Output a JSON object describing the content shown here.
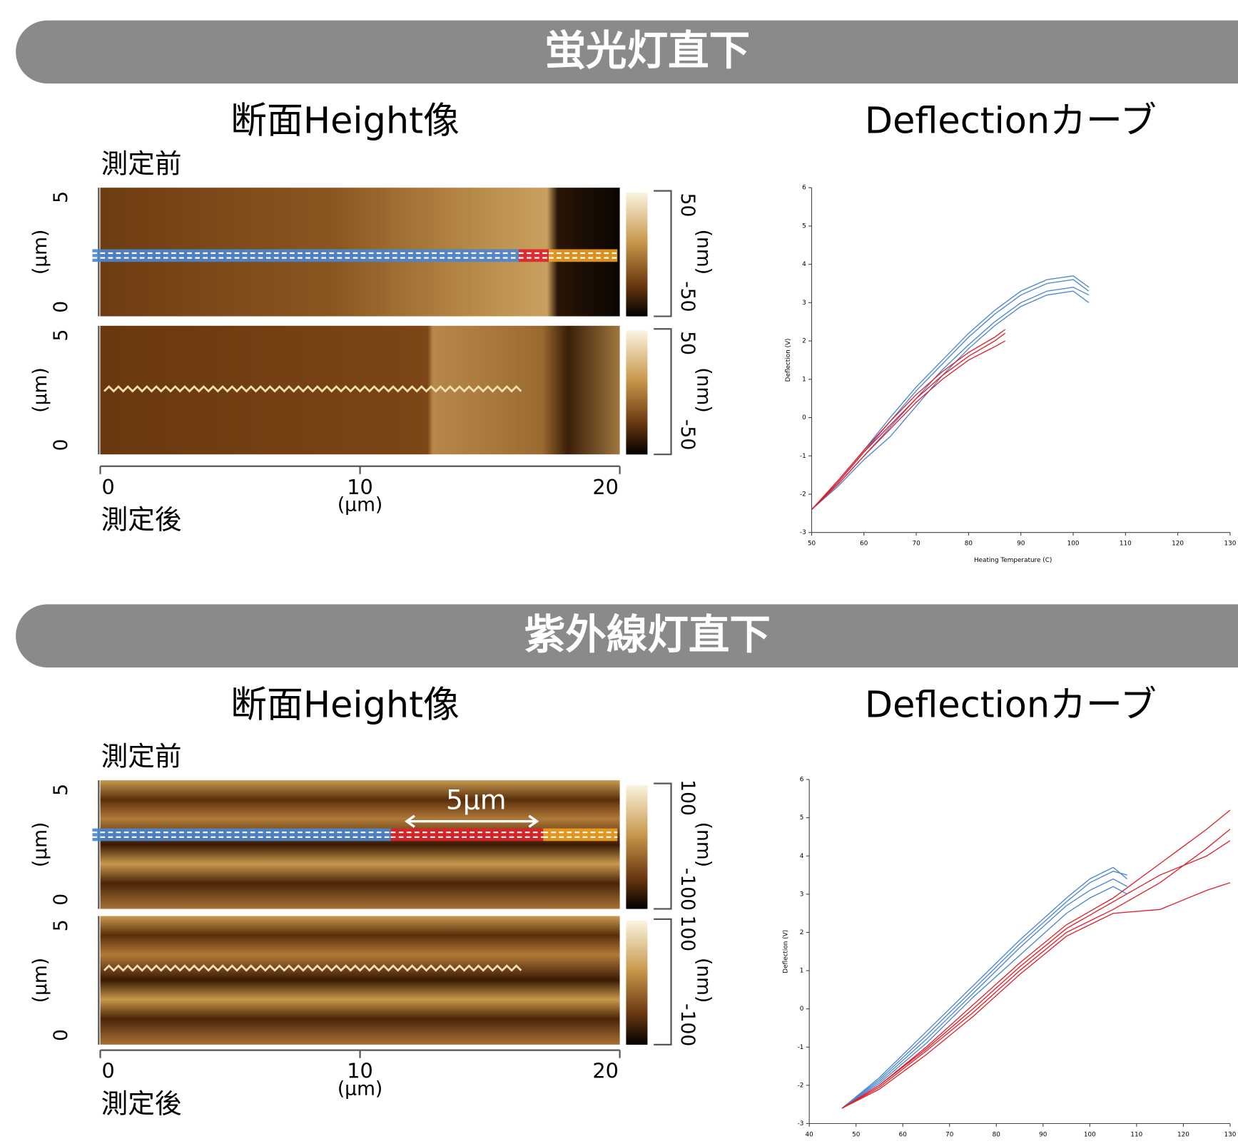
{
  "sections": [
    {
      "title": "蛍光灯直下",
      "height_title": "断面Height像",
      "deflection_title": "Deflectionカーブ",
      "before_label": "測定前",
      "after_label": "測定後",
      "afm": {
        "y_ticks": [
          5,
          0
        ],
        "y_unit": "(µm)",
        "x_ticks": [
          0,
          10,
          20
        ],
        "x_unit": "(µm)",
        "scale_ticks": [
          50,
          -50
        ],
        "scale_unit": "(nm)"
      },
      "chart": {
        "type": "line",
        "x_label": "Heating Temperature (C)",
        "y_label": "Deflection (V)",
        "xlim": [
          50,
          130
        ],
        "ylim": [
          -3,
          6
        ],
        "xticks": [
          50,
          60,
          70,
          80,
          90,
          100,
          110,
          120,
          130
        ],
        "yticks": [
          -3,
          -2,
          -1,
          0,
          1,
          2,
          3,
          4,
          5,
          6
        ],
        "series": [
          {
            "color": "#4a86d0",
            "x": [
              50,
              55,
              60,
              65,
              70,
              75,
              80,
              85,
              90,
              95,
              100,
              103
            ],
            "values": [
              -2.4,
              -1.7,
              -0.9,
              -0.1,
              0.7,
              1.4,
              2.1,
              2.7,
              3.2,
              3.5,
              3.6,
              3.3
            ]
          },
          {
            "color": "#4a86d0",
            "x": [
              50,
              55,
              60,
              65,
              70,
              75,
              80,
              85,
              90,
              95,
              100,
              103
            ],
            "values": [
              -2.4,
              -1.75,
              -1.0,
              -0.25,
              0.5,
              1.25,
              1.9,
              2.5,
              3.0,
              3.3,
              3.4,
              3.2
            ]
          },
          {
            "color": "#4a86d0",
            "x": [
              50,
              55,
              60,
              65,
              70,
              75,
              80,
              85,
              90,
              95,
              100,
              103
            ],
            "values": [
              -2.4,
              -1.8,
              -1.1,
              -0.5,
              0.3,
              1.1,
              1.8,
              2.4,
              2.9,
              3.2,
              3.3,
              3.0
            ]
          },
          {
            "color": "#4a86d0",
            "x": [
              50,
              55,
              60,
              65,
              70,
              75,
              80,
              85,
              90,
              95,
              100,
              103
            ],
            "values": [
              -2.4,
              -1.65,
              -0.85,
              0.0,
              0.8,
              1.5,
              2.2,
              2.8,
              3.3,
              3.6,
              3.7,
              3.4
            ]
          },
          {
            "color": "#e0202a",
            "x": [
              50,
              55,
              60,
              65,
              70,
              75,
              80,
              85,
              87
            ],
            "values": [
              -2.4,
              -1.7,
              -0.9,
              -0.2,
              0.5,
              1.1,
              1.6,
              2.0,
              2.2
            ]
          },
          {
            "color": "#e0202a",
            "x": [
              50,
              55,
              60,
              65,
              70,
              75,
              80,
              85,
              87
            ],
            "values": [
              -2.4,
              -1.75,
              -1.0,
              -0.3,
              0.4,
              1.0,
              1.5,
              1.85,
              2.0
            ]
          },
          {
            "color": "#e0202a",
            "x": [
              50,
              55,
              60,
              65,
              70,
              75,
              80,
              85,
              87
            ],
            "values": [
              -2.4,
              -1.65,
              -0.85,
              -0.1,
              0.6,
              1.2,
              1.7,
              2.1,
              2.3
            ]
          }
        ]
      }
    },
    {
      "title": "紫外線灯直下",
      "height_title": "断面Height像",
      "deflection_title": "Deflectionカーブ",
      "before_label": "測定前",
      "after_label": "測定後",
      "annotation": "5µm",
      "afm": {
        "y_ticks": [
          5,
          0
        ],
        "y_unit": "(µm)",
        "x_ticks": [
          0,
          10,
          20
        ],
        "x_unit": "(µm)",
        "scale_ticks": [
          100,
          -100
        ],
        "scale_unit": "(nm)"
      },
      "chart": {
        "type": "line",
        "y_label": "Deflection (V)",
        "xlim": [
          40,
          130
        ],
        "ylim": [
          -3,
          6
        ],
        "xticks": [
          40,
          50,
          60,
          70,
          80,
          90,
          100,
          110,
          120,
          130
        ],
        "yticks": [
          -3,
          -2,
          -1,
          0,
          1,
          2,
          3,
          4,
          5,
          6
        ],
        "series": [
          {
            "color": "#4a86d0",
            "x": [
              47,
              55,
              65,
              75,
              85,
              95,
              100,
              105,
              108
            ],
            "values": [
              -2.6,
              -1.8,
              -0.6,
              0.6,
              1.8,
              2.9,
              3.4,
              3.7,
              3.4
            ]
          },
          {
            "color": "#4a86d0",
            "x": [
              47,
              55,
              65,
              75,
              85,
              95,
              100,
              105,
              108
            ],
            "values": [
              -2.6,
              -1.9,
              -0.8,
              0.4,
              1.6,
              2.7,
              3.1,
              3.4,
              3.2
            ]
          },
          {
            "color": "#4a86d0",
            "x": [
              47,
              55,
              65,
              75,
              85,
              95,
              100,
              105,
              108
            ],
            "values": [
              -2.6,
              -1.85,
              -0.7,
              0.5,
              1.7,
              2.8,
              3.3,
              3.6,
              3.5
            ]
          },
          {
            "color": "#4a86d0",
            "x": [
              47,
              55,
              65,
              75,
              85,
              95,
              100,
              105,
              108
            ],
            "values": [
              -2.6,
              -1.95,
              -0.9,
              0.3,
              1.4,
              2.5,
              2.9,
              3.2,
              3.0
            ]
          },
          {
            "color": "#e0202a",
            "x": [
              47,
              55,
              65,
              75,
              85,
              95,
              105,
              115,
              125,
              130
            ],
            "values": [
              -2.6,
              -2.0,
              -1.0,
              0.1,
              1.2,
              2.2,
              2.9,
              3.8,
              4.7,
              5.2
            ]
          },
          {
            "color": "#e0202a",
            "x": [
              47,
              55,
              65,
              75,
              85,
              95,
              105,
              115,
              125,
              130
            ],
            "values": [
              -2.6,
              -2.05,
              -1.1,
              -0.1,
              1.0,
              2.0,
              2.6,
              3.3,
              4.2,
              4.7
            ]
          },
          {
            "color": "#e0202a",
            "x": [
              47,
              55,
              65,
              75,
              85,
              95,
              105,
              115,
              125,
              130
            ],
            "values": [
              -2.6,
              -2.1,
              -1.2,
              -0.2,
              0.9,
              1.9,
              2.5,
              2.6,
              3.1,
              3.3
            ]
          },
          {
            "color": "#e0202a",
            "x": [
              47,
              55,
              65,
              75,
              85,
              95,
              105,
              115,
              125,
              130
            ],
            "values": [
              -2.6,
              -2.0,
              -1.05,
              0.0,
              1.1,
              2.1,
              2.8,
              3.5,
              4.0,
              4.4
            ]
          }
        ]
      }
    }
  ]
}
